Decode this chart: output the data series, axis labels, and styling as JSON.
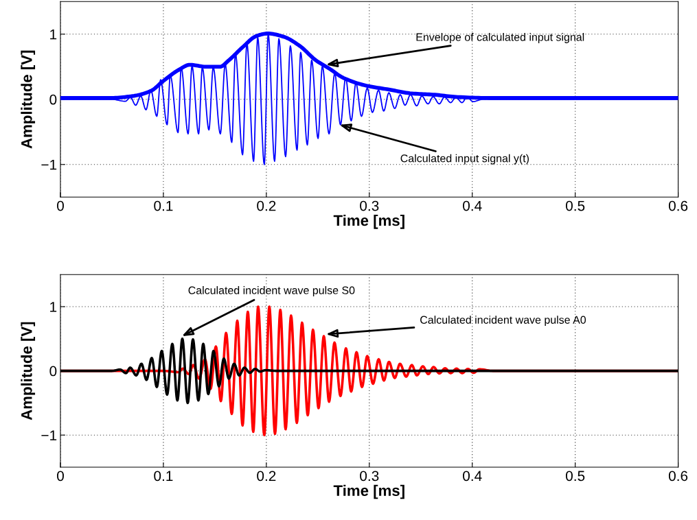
{
  "chart_data": [
    {
      "type": "line",
      "xlabel": "Time [ms]",
      "ylabel": "Amplitude [V]",
      "xlim": [
        0,
        0.6
      ],
      "ylim": [
        -1.5,
        1.5
      ],
      "xticks": [
        0,
        0.1,
        0.2,
        0.3,
        0.4,
        0.5,
        0.6
      ],
      "yticks": [
        {
          "value": -1,
          "label": "−1"
        },
        0,
        1
      ],
      "grid": true,
      "line_style": "solid",
      "marker": "none",
      "series": [
        {
          "color": "#0000ff",
          "x": [
            0,
            0.05,
            0.063,
            0.068,
            0.0731,
            0.078,
            0.0831,
            0.0878,
            0.0936,
            0.0973,
            0.1036,
            0.1067,
            0.1142,
            0.1173,
            0.124,
            0.1278,
            0.1342,
            0.1378,
            0.1442,
            0.1484,
            0.1553,
            0.16,
            0.1664,
            0.17,
            0.1769,
            0.1811,
            0.1876,
            0.1916,
            0.198,
            0.2018,
            0.208,
            0.2122,
            0.2187,
            0.2233,
            0.2298,
            0.2333,
            0.2398,
            0.244,
            0.2502,
            0.2544,
            0.2609,
            0.2664,
            0.272,
            0.277,
            0.2824,
            0.287,
            0.2924,
            0.298,
            0.303,
            0.309,
            0.314,
            0.319,
            0.3247,
            0.33,
            0.3347,
            0.34,
            0.346,
            0.351,
            0.357,
            0.362,
            0.368,
            0.373,
            0.379,
            0.384,
            0.39,
            0.395,
            0.4007,
            0.41,
            0.6
          ],
          "values": [
            0,
            0,
            -0.03,
            0.03,
            -0.09,
            0.05,
            -0.16,
            0.14,
            -0.26,
            0.3,
            -0.39,
            0.37,
            -0.51,
            0.49,
            -0.53,
            0.51,
            -0.53,
            0.49,
            -0.47,
            0.49,
            -0.53,
            0.54,
            -0.66,
            0.7,
            -0.85,
            0.86,
            -0.95,
            0.95,
            -1.0,
            1.0,
            -0.95,
            0.93,
            -0.88,
            0.82,
            -0.78,
            0.72,
            -0.7,
            0.6,
            -0.6,
            0.51,
            -0.53,
            0.4,
            -0.39,
            0.33,
            -0.33,
            0.25,
            -0.26,
            0.17,
            -0.2,
            0.14,
            -0.18,
            0.1,
            -0.14,
            0.07,
            -0.09,
            0.07,
            -0.1,
            0.05,
            -0.07,
            0.04,
            -0.07,
            0.035,
            -0.05,
            0.035,
            -0.05,
            0.035,
            -0.035,
            0,
            0
          ]
        },
        {
          "color": "#0000ff",
          "x": [
            0,
            0.048,
            0.07,
            0.088,
            0.099,
            0.1147,
            0.1258,
            0.1413,
            0.155,
            0.1636,
            0.177,
            0.1902,
            0.2013,
            0.2169,
            0.2324,
            0.248,
            0.2613,
            0.2747,
            0.297,
            0.319,
            0.3413,
            0.3636,
            0.386,
            0.42,
            0.5,
            0.6
          ],
          "values": [
            0.02,
            0.02,
            0.05,
            0.13,
            0.27,
            0.45,
            0.53,
            0.5,
            0.5,
            0.6,
            0.8,
            0.97,
            1.01,
            0.96,
            0.82,
            0.6,
            0.47,
            0.33,
            0.21,
            0.15,
            0.09,
            0.07,
            0.035,
            0.02,
            0.02,
            0.02
          ]
        }
      ],
      "annotations": [
        {
          "text": "Envelope of calculated input signal",
          "x": 0.258,
          "y": 0.53
        },
        {
          "text": "Calculated input signal y(t)",
          "x": 0.271,
          "y": -0.39
        }
      ]
    },
    {
      "type": "line",
      "xlabel": "Time [ms]",
      "ylabel": "Amplitude [V]",
      "xlim": [
        0,
        0.6
      ],
      "ylim": [
        -1.5,
        1.5
      ],
      "xticks": [
        0,
        0.1,
        0.2,
        0.3,
        0.4,
        0.5,
        0.6
      ],
      "yticks": [
        {
          "value": -1,
          "label": "−1"
        },
        0,
        1
      ],
      "grid": true,
      "line_style": "solid",
      "marker": "none",
      "series": [
        {
          "color": "#ff0000",
          "x": [
            0,
            0.1,
            0.1147,
            0.119,
            0.1247,
            0.129,
            0.1347,
            0.1404,
            0.1458,
            0.151,
            0.1558,
            0.1609,
            0.1664,
            0.1718,
            0.1769,
            0.182,
            0.1873,
            0.192,
            0.198,
            0.2029,
            0.2084,
            0.2136,
            0.2187,
            0.224,
            0.2296,
            0.2347,
            0.2402,
            0.2453,
            0.2507,
            0.2558,
            0.2609,
            0.2662,
            0.272,
            0.2773,
            0.2824,
            0.2876,
            0.2929,
            0.298,
            0.3036,
            0.3091,
            0.3142,
            0.3191,
            0.3247,
            0.3298,
            0.3358,
            0.3413,
            0.3462,
            0.352,
            0.3573,
            0.3624,
            0.368,
            0.3736,
            0.3791,
            0.3847,
            0.3902,
            0.3958,
            0.4013,
            0.4069,
            0.42,
            0.6
          ],
          "values": [
            0,
            0,
            -0.02,
            0.035,
            -0.05,
            0.09,
            -0.12,
            0.18,
            -0.28,
            0.38,
            -0.47,
            0.59,
            -0.67,
            0.78,
            -0.85,
            0.92,
            -0.95,
            1.0,
            -1.0,
            1.0,
            -0.98,
            0.95,
            -0.91,
            0.86,
            -0.81,
            0.75,
            -0.69,
            0.64,
            -0.58,
            0.54,
            -0.48,
            0.44,
            -0.39,
            0.35,
            -0.32,
            0.29,
            -0.25,
            0.23,
            -0.2,
            0.18,
            -0.15,
            0.14,
            -0.11,
            0.11,
            -0.09,
            0.09,
            -0.07,
            0.07,
            -0.05,
            0.06,
            -0.04,
            0.04,
            -0.035,
            0.035,
            -0.035,
            0.03,
            -0.03,
            0.025,
            0,
            0
          ]
        },
        {
          "color": "#000000",
          "x": [
            0,
            0.05,
            0.058,
            0.0636,
            0.0678,
            0.0736,
            0.0787,
            0.0836,
            0.0887,
            0.0936,
            0.0984,
            0.1036,
            0.1087,
            0.1136,
            0.1184,
            0.1236,
            0.1287,
            0.134,
            0.1387,
            0.1436,
            0.1487,
            0.154,
            0.1587,
            0.1636,
            0.1687,
            0.1736,
            0.1787,
            0.184,
            0.1891,
            0.194,
            0.199,
            0.21,
            0.6
          ],
          "values": [
            0,
            0,
            0.02,
            -0.035,
            0.05,
            -0.07,
            0.11,
            -0.14,
            0.2,
            -0.25,
            0.31,
            -0.37,
            0.42,
            -0.46,
            0.5,
            -0.5,
            0.49,
            -0.46,
            0.42,
            -0.36,
            0.31,
            -0.24,
            0.19,
            -0.12,
            0.11,
            -0.07,
            0.05,
            -0.03,
            0.03,
            -0.01,
            0.01,
            0,
            0
          ]
        }
      ],
      "annotations": [
        {
          "text": "Calculated incident wave pulse S0",
          "x": 0.118,
          "y": 0.54
        },
        {
          "text": "Calculated incident wave pulse A0",
          "x": 0.258,
          "y": 0.57
        }
      ]
    }
  ]
}
